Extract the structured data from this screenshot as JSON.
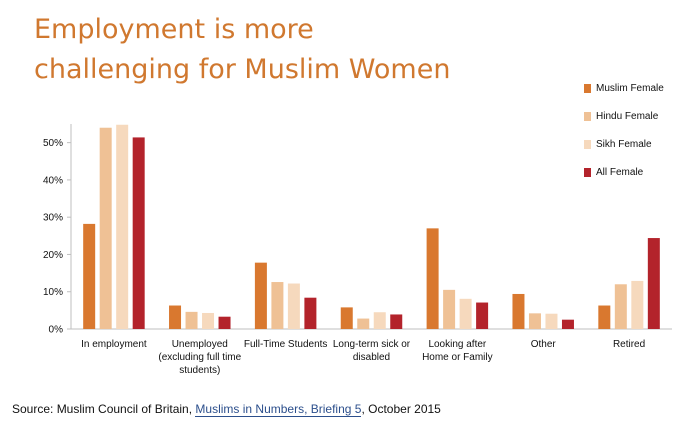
{
  "title": {
    "line1": "Employment is more",
    "line2": "challenging for Muslim Women"
  },
  "source": {
    "prefix": "Source: Muslim Council of Britain, ",
    "link_text": "Muslims in Numbers, Briefing 5",
    "suffix": ", October 2015"
  },
  "colors": {
    "title": "#d0782f",
    "link": "#2c4f8c"
  },
  "chart_data": {
    "type": "bar",
    "categories": [
      [
        "In employment"
      ],
      [
        "Unemployed",
        "(excluding full time",
        "students)"
      ],
      [
        "Full-Time Students"
      ],
      [
        "Long-term sick or",
        "disabled"
      ],
      [
        "Looking after",
        "Home or Family"
      ],
      [
        "Other"
      ],
      [
        "Retired"
      ]
    ],
    "series": [
      {
        "name": "Muslim Female",
        "color": "#d9782f",
        "values": [
          28.2,
          6.3,
          17.8,
          5.8,
          27.0,
          9.4,
          6.3
        ]
      },
      {
        "name": "Hindu Female",
        "color": "#efc195",
        "values": [
          54.0,
          4.6,
          12.6,
          2.8,
          10.5,
          4.2,
          12.0
        ]
      },
      {
        "name": "Sikh Female",
        "color": "#f6d9bd",
        "values": [
          54.8,
          4.3,
          12.2,
          4.5,
          8.1,
          4.1,
          12.9
        ]
      },
      {
        "name": "All Female",
        "color": "#b3232b",
        "values": [
          51.4,
          3.3,
          8.4,
          3.9,
          7.1,
          2.5,
          24.4
        ]
      }
    ],
    "y_ticks": [
      "0%",
      "10%",
      "20%",
      "30%",
      "40%",
      "50%"
    ],
    "ylim": [
      0,
      55
    ],
    "legend_position": "top-right",
    "grid": false
  }
}
